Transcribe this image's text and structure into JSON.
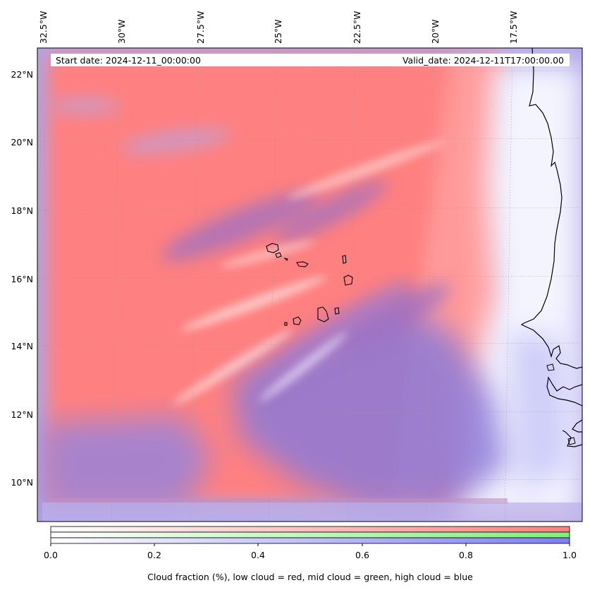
{
  "header": {
    "start_date": "Start date: 2024-12-11_00:00:00",
    "valid_date": "Valid_date: 2024-12-11T17:00:00.00"
  },
  "longitude_labels": [
    "32.5°W",
    "30°W",
    "27.5°W",
    "25°W",
    "22.5°W",
    "20°W",
    "17.5°W"
  ],
  "latitude_labels": [
    "22°N",
    "20°N",
    "18°N",
    "16°N",
    "14°N",
    "12°N",
    "10°N"
  ],
  "colorbar": {
    "ticks": [
      "0.0",
      "0.2",
      "0.4",
      "0.6",
      "0.8",
      "1.0"
    ],
    "caption": "Cloud fraction (%), low cloud = red, mid cloud = green, high cloud = blue",
    "colors": {
      "low": "#ff7f7f",
      "mid": "#7fef7f",
      "high": "#7f7fef"
    }
  },
  "layer_colors": {
    "low_cloud": "#ff8080",
    "high_cloud": "#8a74d8",
    "clear_sky": "#ffffff",
    "coastline": "#000000"
  }
}
